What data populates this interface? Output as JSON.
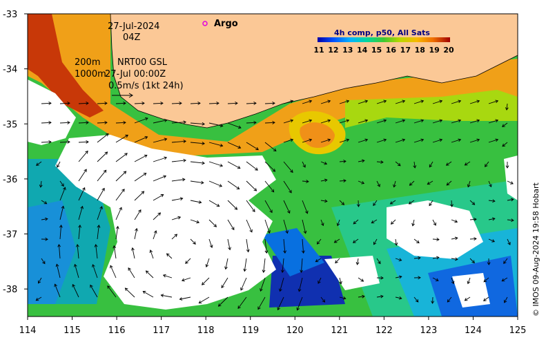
{
  "map": {
    "date_line": "27-Jul-2024",
    "time_line": "04Z",
    "depth_short": "200m",
    "depth_long": "1000m",
    "product": "NRT00 GSL",
    "product_time": "27-Jul 00:00Z",
    "vector_scale_label": "0.5m/s (1kt 24h)",
    "argo_label": "Argo",
    "colorbar_title": "4h comp, p50, All Sats",
    "colorbar_ticks": [
      "11",
      "12",
      "13",
      "14",
      "15",
      "16",
      "17",
      "18",
      "19",
      "20"
    ],
    "credit": "© IMOS 09-Aug-2024 19:58 Hobart",
    "x_ticks": [
      "114",
      "115",
      "116",
      "117",
      "118",
      "119",
      "120",
      "121",
      "122",
      "123",
      "124",
      "125"
    ],
    "y_ticks": [
      "-33",
      "-34",
      "-35",
      "-36",
      "-37",
      "-38"
    ],
    "x_range": [
      114,
      125
    ],
    "y_range": [
      -38.5,
      -33
    ],
    "colors": {
      "land": "#fbc896",
      "cloud": "#ffffff",
      "argo_marker": "#e000e0",
      "colorbar_title": "#000080"
    }
  }
}
